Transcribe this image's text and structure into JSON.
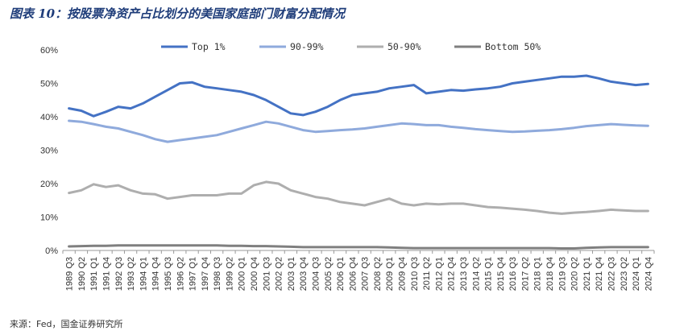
{
  "page": {
    "title": "图表 10：按股票净资产占比划分的美国家庭部门财富分配情况",
    "source": "来源：Fed，国金证券研究所"
  },
  "chart_data": {
    "type": "line",
    "title": "",
    "xlabel": "",
    "ylabel": "",
    "ylim": [
      0,
      60
    ],
    "y_ticks": [
      "0%",
      "10%",
      "20%",
      "30%",
      "40%",
      "50%",
      "60%"
    ],
    "x_tick_labels": [
      "1989 Q3",
      "1990 Q2",
      "1991 Q1",
      "1991 Q4",
      "1992 Q3",
      "1993 Q2",
      "1994 Q1",
      "1994 Q4",
      "1995 Q3",
      "1996 Q2",
      "1997 Q1",
      "1997 Q4",
      "1998 Q3",
      "1999 Q2",
      "2000 Q1",
      "2000 Q4",
      "2001 Q3",
      "2002 Q2",
      "2003 Q1",
      "2003 Q4",
      "2004 Q3",
      "2005 Q2",
      "2006 Q1",
      "2006 Q4",
      "2007 Q3",
      "2008 Q2",
      "2009 Q1",
      "2009 Q4",
      "2010 Q3",
      "2011 Q2",
      "2012 Q1",
      "2012 Q4",
      "2013 Q3",
      "2014 Q2",
      "2015 Q1",
      "2015 Q4",
      "2016 Q3",
      "2017 Q2",
      "2018 Q1",
      "2018 Q4",
      "2019 Q3",
      "2020 Q2",
      "2021 Q1",
      "2021 Q4",
      "2022 Q3",
      "2023 Q2",
      "2024 Q1",
      "2024 Q4"
    ],
    "legend_position": "top",
    "grid": false,
    "series": [
      {
        "name": "Top 1%",
        "color": "#4472c4",
        "values": [
          42.5,
          41.8,
          40.2,
          41.5,
          43,
          42.5,
          44,
          46,
          48,
          50,
          50.3,
          49,
          48.5,
          48,
          47.5,
          46.5,
          45,
          43,
          41,
          40.5,
          41.5,
          43,
          45,
          46.5,
          47,
          47.5,
          48.5,
          49,
          49.5,
          47,
          47.5,
          48,
          47.8,
          48.2,
          48.5,
          49,
          50,
          50.5,
          51,
          51.5,
          52,
          52,
          52.3,
          51.5,
          50.5,
          50,
          49.5,
          49.8
        ]
      },
      {
        "name": "90-99%",
        "color": "#8faadc",
        "values": [
          38.8,
          38.5,
          37.8,
          37,
          36.5,
          35.5,
          34.5,
          33.3,
          32.5,
          33,
          33.5,
          34,
          34.5,
          35.5,
          36.5,
          37.5,
          38.5,
          38,
          37,
          36,
          35.5,
          35.7,
          36,
          36.2,
          36.5,
          37,
          37.5,
          38,
          37.8,
          37.5,
          37.5,
          37,
          36.7,
          36.3,
          36,
          35.7,
          35.5,
          35.6,
          35.8,
          36,
          36.3,
          36.7,
          37.2,
          37.5,
          37.8,
          37.6,
          37.4,
          37.3
        ]
      },
      {
        "name": "50-90%",
        "color": "#aeaeae",
        "values": [
          17.2,
          18,
          19.8,
          19,
          19.5,
          18,
          17,
          16.8,
          15.5,
          16,
          16.5,
          16.5,
          16.5,
          17,
          17,
          19.5,
          20.5,
          20,
          18,
          17,
          16,
          15.5,
          14.5,
          14,
          13.5,
          14.5,
          15.5,
          14,
          13.5,
          14,
          13.8,
          14,
          14,
          13.5,
          13,
          12.8,
          12.5,
          12.2,
          11.8,
          11.3,
          11,
          11.3,
          11.5,
          11.8,
          12.2,
          12,
          11.8,
          11.8
        ]
      },
      {
        "name": "Bottom 50%",
        "color": "#7f7f7f",
        "values": [
          1.2,
          1.3,
          1.4,
          1.4,
          1.5,
          1.5,
          1.5,
          1.5,
          1.5,
          1.5,
          1.5,
          1.5,
          1.5,
          1.4,
          1.4,
          1.3,
          1.3,
          1.2,
          1.1,
          1.0,
          1.0,
          1.0,
          1.0,
          1.0,
          1.0,
          1.0,
          0.9,
          0.8,
          0.7,
          0.7,
          0.7,
          0.7,
          0.7,
          0.7,
          0.7,
          0.7,
          0.7,
          0.7,
          0.7,
          0.7,
          0.6,
          0.6,
          0.8,
          0.9,
          1.0,
          1.0,
          1.0,
          1.0
        ]
      }
    ]
  }
}
